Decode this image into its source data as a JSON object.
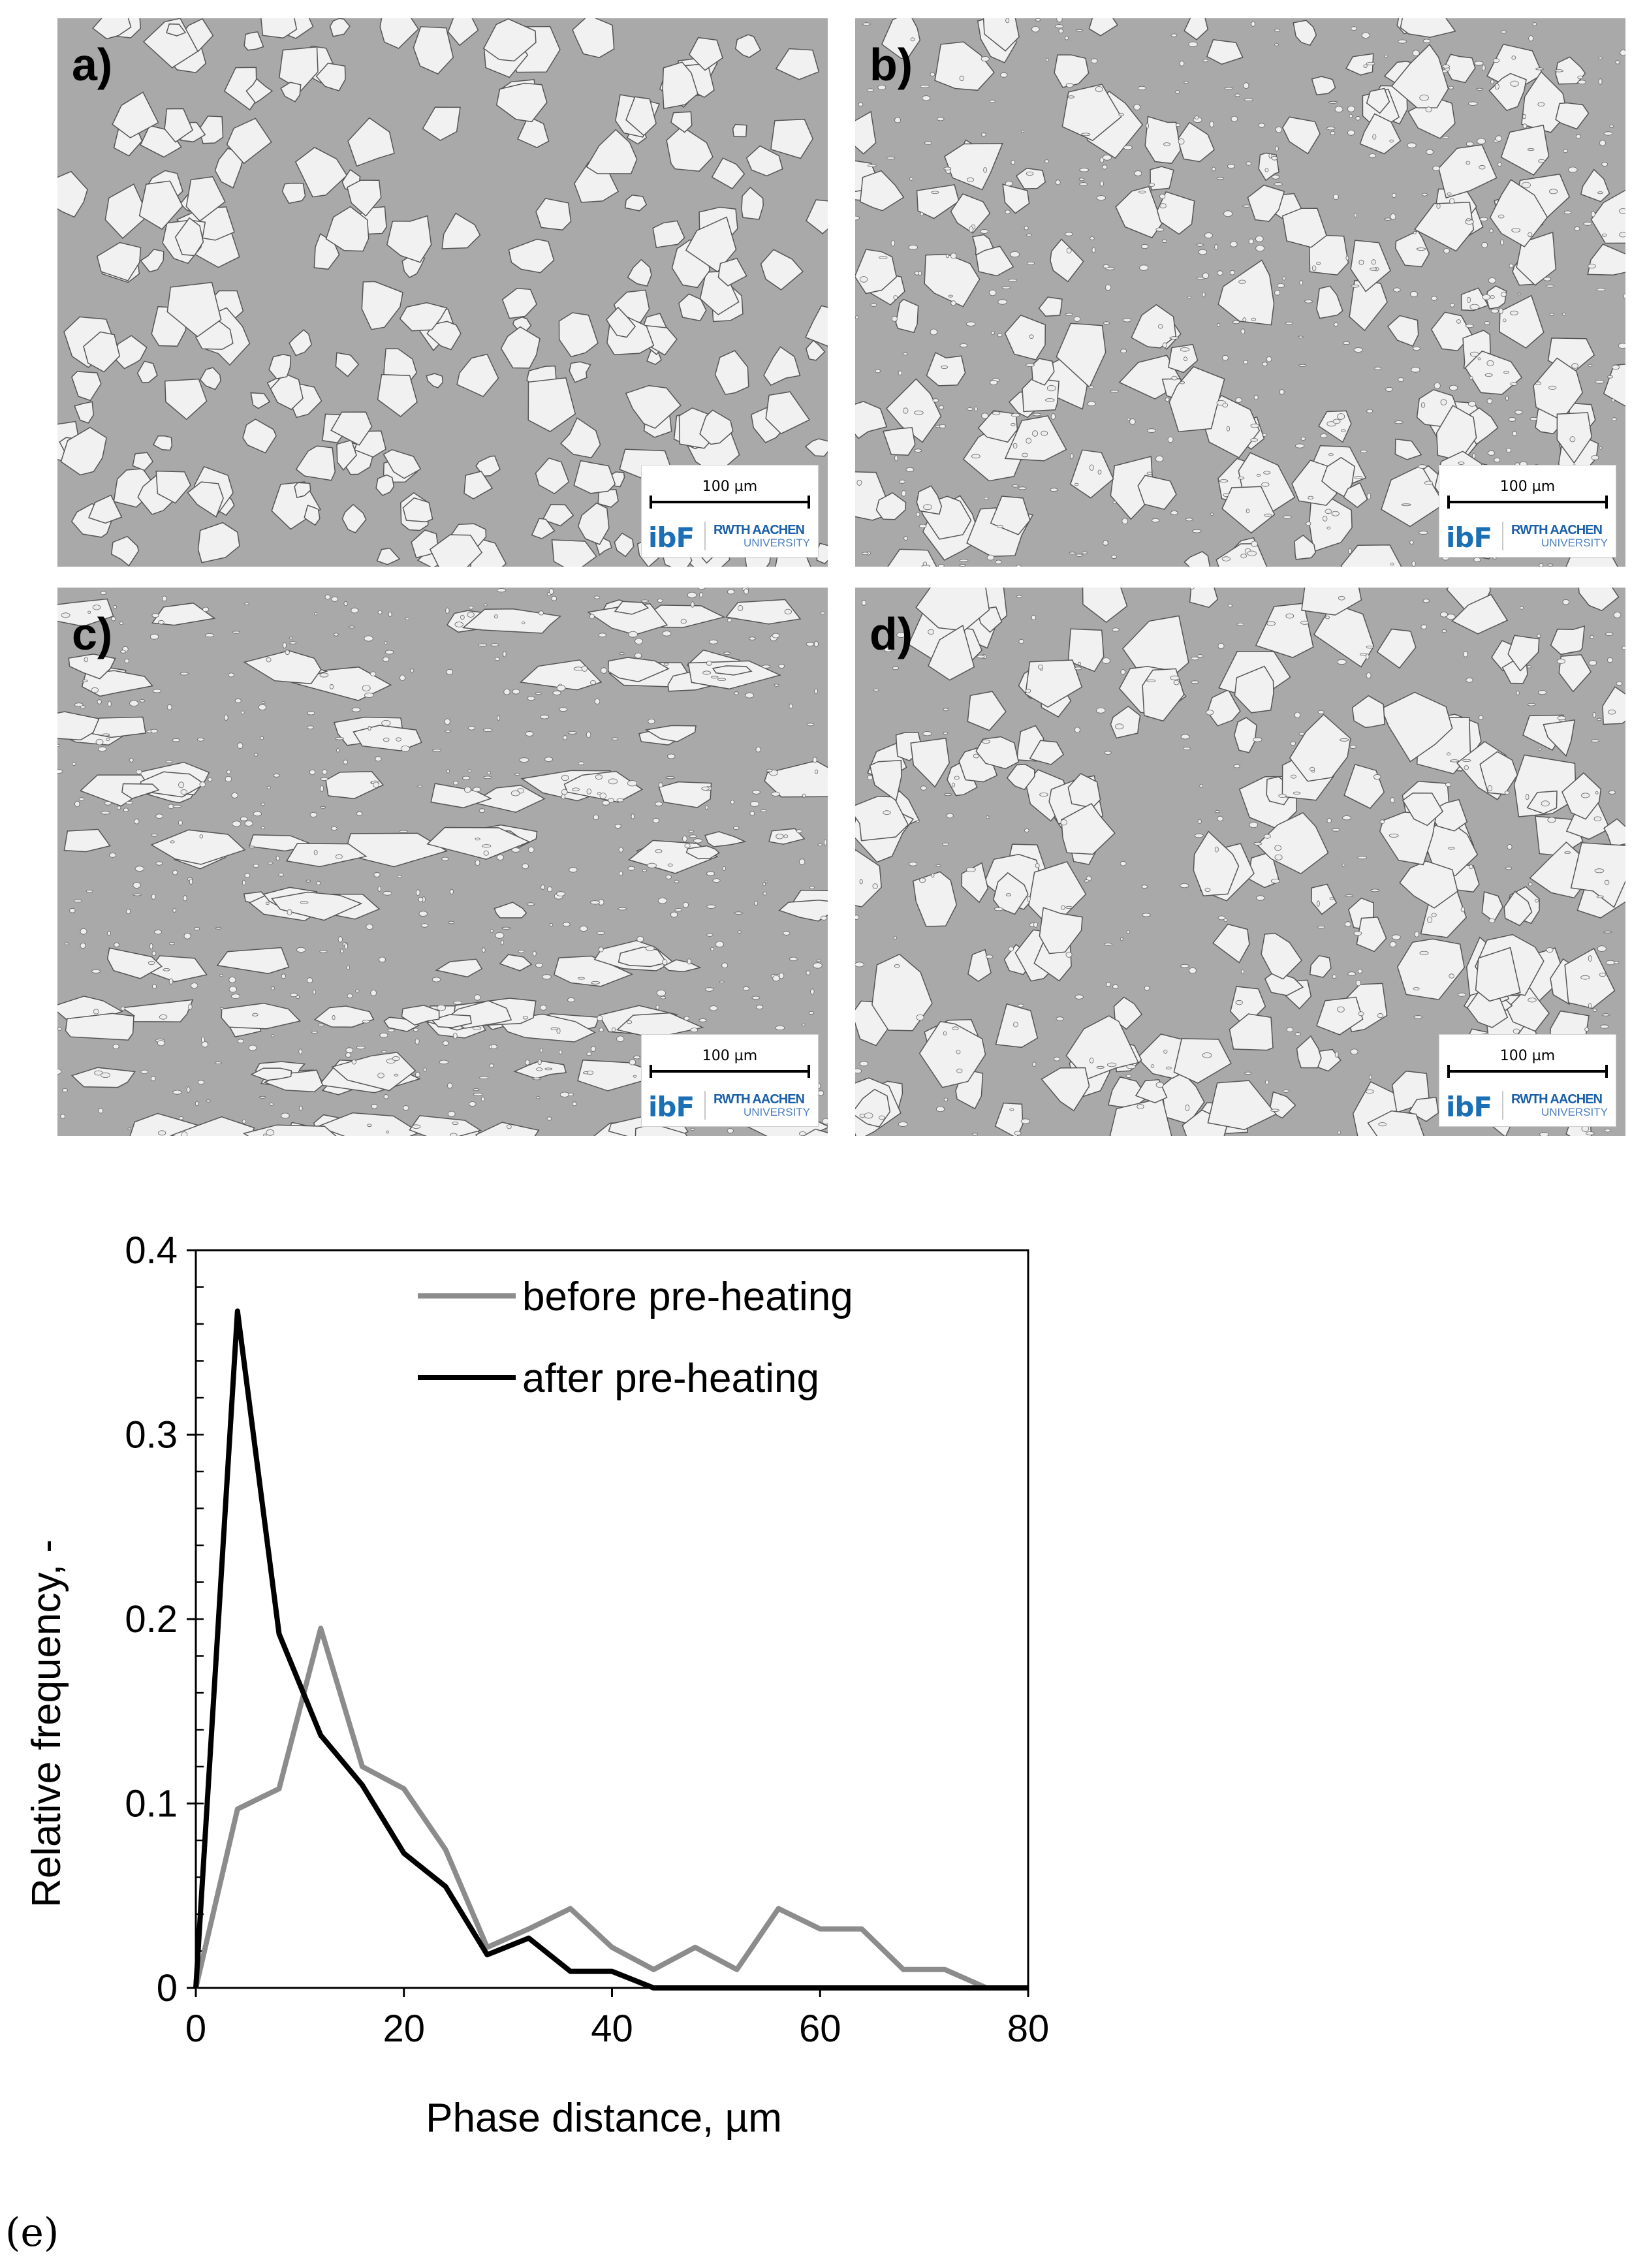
{
  "panels": [
    {
      "label": "a)",
      "scale_label": "100 µm",
      "logo_ibf": "ibF",
      "logo_rwth": "RWTH AACHEN",
      "logo_rwth_sub": "UNIVERSITY"
    },
    {
      "label": "b)",
      "scale_label": "100 µm",
      "logo_ibf": "ibF",
      "logo_rwth": "RWTH AACHEN",
      "logo_rwth_sub": "UNIVERSITY"
    },
    {
      "label": "c)",
      "scale_label": "100 µm",
      "logo_ibf": "ibF",
      "logo_rwth": "RWTH AACHEN",
      "logo_rwth_sub": "UNIVERSITY"
    },
    {
      "label": "d)",
      "scale_label": "100 µm",
      "logo_ibf": "ibF",
      "logo_rwth": "RWTH AACHEN",
      "logo_rwth_sub": "UNIVERSITY"
    }
  ],
  "caption": "(e)",
  "colors": {
    "before": "#8c8c8c",
    "after": "#000000",
    "matrix": "#a9a9a9",
    "phase": "#f1f1f1"
  },
  "chart_data": {
    "type": "line",
    "xlabel": "Phase distance, µm",
    "ylabel": "Relative frequency, -",
    "xlim": [
      0,
      80
    ],
    "ylim": [
      0,
      0.4
    ],
    "xticks": [
      0,
      20,
      40,
      60,
      80
    ],
    "yticks": [
      0,
      0.1,
      0.2,
      0.3,
      0.4
    ],
    "ytick_labels": [
      "0",
      "0.1",
      "0.2",
      "0.3",
      "0.4"
    ],
    "legend_position": "top-right",
    "grid": false,
    "series": [
      {
        "name": "before pre-heating",
        "color": "#8c8c8c",
        "x": [
          0,
          4,
          8,
          12,
          16,
          20,
          24,
          28,
          32,
          36,
          40,
          44,
          48,
          52,
          56,
          60,
          64,
          68,
          72,
          76,
          80
        ],
        "y": [
          0,
          0.097,
          0.108,
          0.195,
          0.12,
          0.108,
          0.075,
          0.022,
          0.032,
          0.043,
          0.022,
          0.01,
          0.022,
          0.01,
          0.043,
          0.032,
          0.032,
          0.01,
          0.01,
          0,
          0
        ]
      },
      {
        "name": "after pre-heating",
        "color": "#000000",
        "x": [
          0,
          4,
          8,
          12,
          16,
          20,
          24,
          28,
          32,
          36,
          40,
          44,
          48,
          52,
          56,
          60,
          64,
          68,
          72,
          76,
          80
        ],
        "y": [
          0,
          0.367,
          0.192,
          0.137,
          0.11,
          0.073,
          0.055,
          0.018,
          0.027,
          0.009,
          0.009,
          0,
          0,
          0,
          0,
          0,
          0,
          0,
          0,
          0,
          0
        ]
      }
    ]
  }
}
